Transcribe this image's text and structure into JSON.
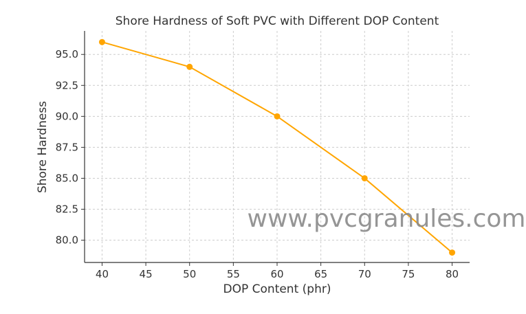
{
  "chart_data": {
    "type": "line",
    "title": "Shore Hardness of Soft PVC with Different DOP Content",
    "xlabel": "DOP Content (phr)",
    "ylabel": "Shore Hardness",
    "x": [
      40,
      50,
      60,
      70,
      80
    ],
    "series": [
      {
        "values": [
          96,
          94,
          90,
          85,
          79
        ],
        "color": "#FFA500"
      }
    ],
    "xlim": [
      38,
      82
    ],
    "ylim": [
      78.2,
      96.9
    ],
    "xticks": [
      "40",
      "45",
      "50",
      "55",
      "60",
      "65",
      "70",
      "75",
      "80"
    ],
    "yticks": [
      "80.0",
      "82.5",
      "85.0",
      "87.5",
      "90.0",
      "92.5",
      "95.0"
    ],
    "grid": true,
    "grid_style": "dashed",
    "watermark": "www.pvcgranules.com"
  }
}
